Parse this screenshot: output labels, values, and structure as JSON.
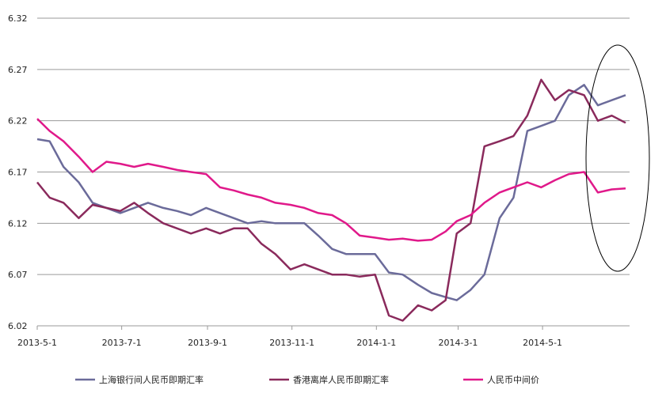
{
  "chart_data": {
    "type": "line",
    "title": "",
    "xlabel": "",
    "ylabel": "",
    "ylim": [
      6.02,
      6.32
    ],
    "yticks": [
      "6.32",
      "6.27",
      "6.22",
      "6.17",
      "6.12",
      "6.07",
      "6.02"
    ],
    "xticks": [
      "2013-5-1",
      "2013-7-1",
      "2013-9-1",
      "2013-11-1",
      "2014-1-1",
      "2014-3-1",
      "2014-5-1"
    ],
    "grid": "horizontal",
    "legend": "bottom",
    "annotation": "ellipse around the latest values (late May – June 2014)",
    "series": [
      {
        "name": "上海银行间人民币即期汇率",
        "color": "#6b6b9a",
        "points": [
          [
            "2013-05-01",
            6.202
          ],
          [
            "2013-05-10",
            6.2
          ],
          [
            "2013-05-20",
            6.175
          ],
          [
            "2013-05-31",
            6.16
          ],
          [
            "2013-06-10",
            6.14
          ],
          [
            "2013-06-20",
            6.135
          ],
          [
            "2013-06-30",
            6.13
          ],
          [
            "2013-07-10",
            6.135
          ],
          [
            "2013-07-20",
            6.14
          ],
          [
            "2013-07-31",
            6.135
          ],
          [
            "2013-08-10",
            6.132
          ],
          [
            "2013-08-20",
            6.128
          ],
          [
            "2013-08-31",
            6.135
          ],
          [
            "2013-09-10",
            6.13
          ],
          [
            "2013-09-20",
            6.125
          ],
          [
            "2013-09-30",
            6.12
          ],
          [
            "2013-10-10",
            6.122
          ],
          [
            "2013-10-20",
            6.12
          ],
          [
            "2013-10-31",
            6.12
          ],
          [
            "2013-11-10",
            6.12
          ],
          [
            "2013-11-20",
            6.108
          ],
          [
            "2013-11-30",
            6.095
          ],
          [
            "2013-12-10",
            6.09
          ],
          [
            "2013-12-20",
            6.09
          ],
          [
            "2013-12-31",
            6.09
          ],
          [
            "2014-01-10",
            6.072
          ],
          [
            "2014-01-20",
            6.07
          ],
          [
            "2014-01-31",
            6.06
          ],
          [
            "2014-02-10",
            6.052
          ],
          [
            "2014-02-20",
            6.048
          ],
          [
            "2014-02-28",
            6.045
          ],
          [
            "2014-03-10",
            6.055
          ],
          [
            "2014-03-20",
            6.07
          ],
          [
            "2014-03-31",
            6.125
          ],
          [
            "2014-04-10",
            6.145
          ],
          [
            "2014-04-20",
            6.21
          ],
          [
            "2014-04-30",
            6.215
          ],
          [
            "2014-05-10",
            6.22
          ],
          [
            "2014-05-20",
            6.245
          ],
          [
            "2014-05-31",
            6.255
          ],
          [
            "2014-06-10",
            6.235
          ],
          [
            "2014-06-20",
            6.24
          ],
          [
            "2014-06-30",
            6.245
          ]
        ]
      },
      {
        "name": "香港离岸人民币即期汇率",
        "color": "#8a2a5c",
        "points": [
          [
            "2013-05-01",
            6.16
          ],
          [
            "2013-05-10",
            6.145
          ],
          [
            "2013-05-20",
            6.14
          ],
          [
            "2013-05-31",
            6.125
          ],
          [
            "2013-06-10",
            6.138
          ],
          [
            "2013-06-20",
            6.135
          ],
          [
            "2013-06-30",
            6.132
          ],
          [
            "2013-07-10",
            6.14
          ],
          [
            "2013-07-20",
            6.13
          ],
          [
            "2013-07-31",
            6.12
          ],
          [
            "2013-08-10",
            6.115
          ],
          [
            "2013-08-20",
            6.11
          ],
          [
            "2013-08-31",
            6.115
          ],
          [
            "2013-09-10",
            6.11
          ],
          [
            "2013-09-20",
            6.115
          ],
          [
            "2013-09-30",
            6.115
          ],
          [
            "2013-10-10",
            6.1
          ],
          [
            "2013-10-20",
            6.09
          ],
          [
            "2013-10-31",
            6.075
          ],
          [
            "2013-11-10",
            6.08
          ],
          [
            "2013-11-20",
            6.075
          ],
          [
            "2013-11-30",
            6.07
          ],
          [
            "2013-12-10",
            6.07
          ],
          [
            "2013-12-20",
            6.068
          ],
          [
            "2013-12-31",
            6.07
          ],
          [
            "2014-01-10",
            6.03
          ],
          [
            "2014-01-20",
            6.025
          ],
          [
            "2014-01-31",
            6.04
          ],
          [
            "2014-02-10",
            6.035
          ],
          [
            "2014-02-20",
            6.045
          ],
          [
            "2014-02-28",
            6.11
          ],
          [
            "2014-03-10",
            6.12
          ],
          [
            "2014-03-20",
            6.195
          ],
          [
            "2014-03-31",
            6.2
          ],
          [
            "2014-04-10",
            6.205
          ],
          [
            "2014-04-20",
            6.225
          ],
          [
            "2014-04-30",
            6.26
          ],
          [
            "2014-05-10",
            6.24
          ],
          [
            "2014-05-20",
            6.25
          ],
          [
            "2014-05-31",
            6.245
          ],
          [
            "2014-06-10",
            6.22
          ],
          [
            "2014-06-20",
            6.225
          ],
          [
            "2014-06-30",
            6.218
          ]
        ]
      },
      {
        "name": "人民币中间价",
        "color": "#e0198a",
        "points": [
          [
            "2013-05-01",
            6.222
          ],
          [
            "2013-05-10",
            6.21
          ],
          [
            "2013-05-20",
            6.2
          ],
          [
            "2013-05-31",
            6.185
          ],
          [
            "2013-06-10",
            6.17
          ],
          [
            "2013-06-20",
            6.18
          ],
          [
            "2013-06-30",
            6.178
          ],
          [
            "2013-07-10",
            6.175
          ],
          [
            "2013-07-20",
            6.178
          ],
          [
            "2013-07-31",
            6.175
          ],
          [
            "2013-08-10",
            6.172
          ],
          [
            "2013-08-20",
            6.17
          ],
          [
            "2013-08-31",
            6.168
          ],
          [
            "2013-09-10",
            6.155
          ],
          [
            "2013-09-20",
            6.152
          ],
          [
            "2013-09-30",
            6.148
          ],
          [
            "2013-10-10",
            6.145
          ],
          [
            "2013-10-20",
            6.14
          ],
          [
            "2013-10-31",
            6.138
          ],
          [
            "2013-11-10",
            6.135
          ],
          [
            "2013-11-20",
            6.13
          ],
          [
            "2013-11-30",
            6.128
          ],
          [
            "2013-12-10",
            6.12
          ],
          [
            "2013-12-20",
            6.108
          ],
          [
            "2013-12-31",
            6.106
          ],
          [
            "2014-01-10",
            6.104
          ],
          [
            "2014-01-20",
            6.105
          ],
          [
            "2014-01-31",
            6.103
          ],
          [
            "2014-02-10",
            6.104
          ],
          [
            "2014-02-20",
            6.112
          ],
          [
            "2014-02-28",
            6.122
          ],
          [
            "2014-03-10",
            6.128
          ],
          [
            "2014-03-20",
            6.14
          ],
          [
            "2014-03-31",
            6.15
          ],
          [
            "2014-04-10",
            6.155
          ],
          [
            "2014-04-20",
            6.16
          ],
          [
            "2014-04-30",
            6.155
          ],
          [
            "2014-05-10",
            6.162
          ],
          [
            "2014-05-20",
            6.168
          ],
          [
            "2014-05-31",
            6.17
          ],
          [
            "2014-06-10",
            6.15
          ],
          [
            "2014-06-20",
            6.153
          ],
          [
            "2014-06-30",
            6.154
          ]
        ]
      }
    ]
  }
}
